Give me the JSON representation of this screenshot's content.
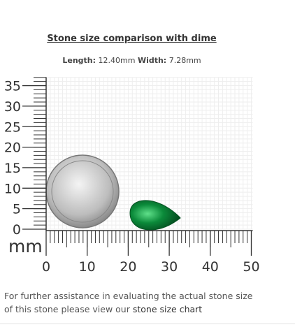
{
  "header": {
    "title": "Stone size comparison with dime",
    "length_label": "Length:",
    "length_value": "12.40mm",
    "width_label": "Width:",
    "width_value": "7.28mm"
  },
  "ruler": {
    "unit": "mm",
    "xticks": [
      0,
      10,
      20,
      30,
      40,
      50
    ],
    "yticks": [
      0,
      5,
      10,
      15,
      20,
      25,
      30,
      35
    ]
  },
  "footer": {
    "text": "For further assistance in evaluating the actual stone size of this stone please view our",
    "link": "stone size chart"
  }
}
